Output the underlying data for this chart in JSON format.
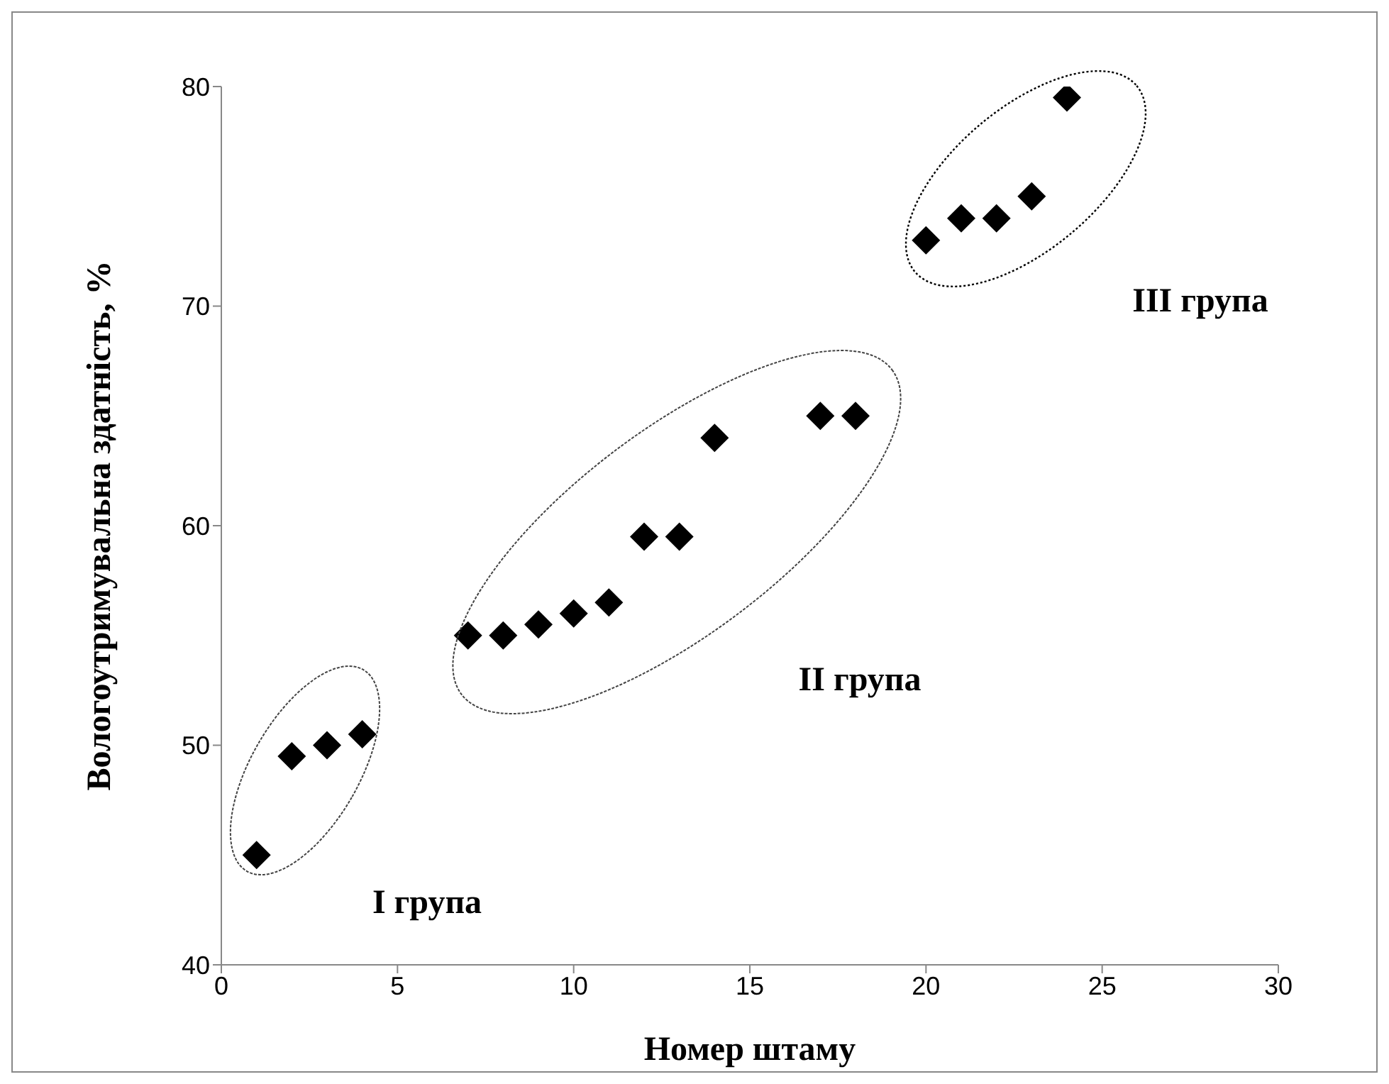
{
  "chart_data": {
    "type": "scatter",
    "xlabel": "Номер штаму",
    "ylabel": "Вологоутримувальна здатність, %",
    "x": [
      1,
      2,
      3,
      4,
      7,
      8,
      9,
      10,
      11,
      12,
      13,
      14,
      17,
      18,
      20,
      21,
      22,
      23,
      24
    ],
    "series": [
      {
        "color": "#000000",
        "values": [
          45,
          49.5,
          50,
          50.5,
          55,
          55,
          55.5,
          56,
          56.5,
          59.5,
          59.5,
          64,
          65,
          65,
          73,
          74,
          74,
          75,
          79.5
        ]
      }
    ],
    "marker": "diamond",
    "xlim": [
      0,
      30
    ],
    "xticks": [
      0,
      5,
      10,
      15,
      20,
      25,
      30
    ],
    "ylim": [
      40,
      80
    ],
    "yticks": [
      40,
      50,
      60,
      70,
      80
    ],
    "grid": false,
    "legend": false,
    "annotations": [
      "I група",
      "II група",
      "III група"
    ]
  }
}
